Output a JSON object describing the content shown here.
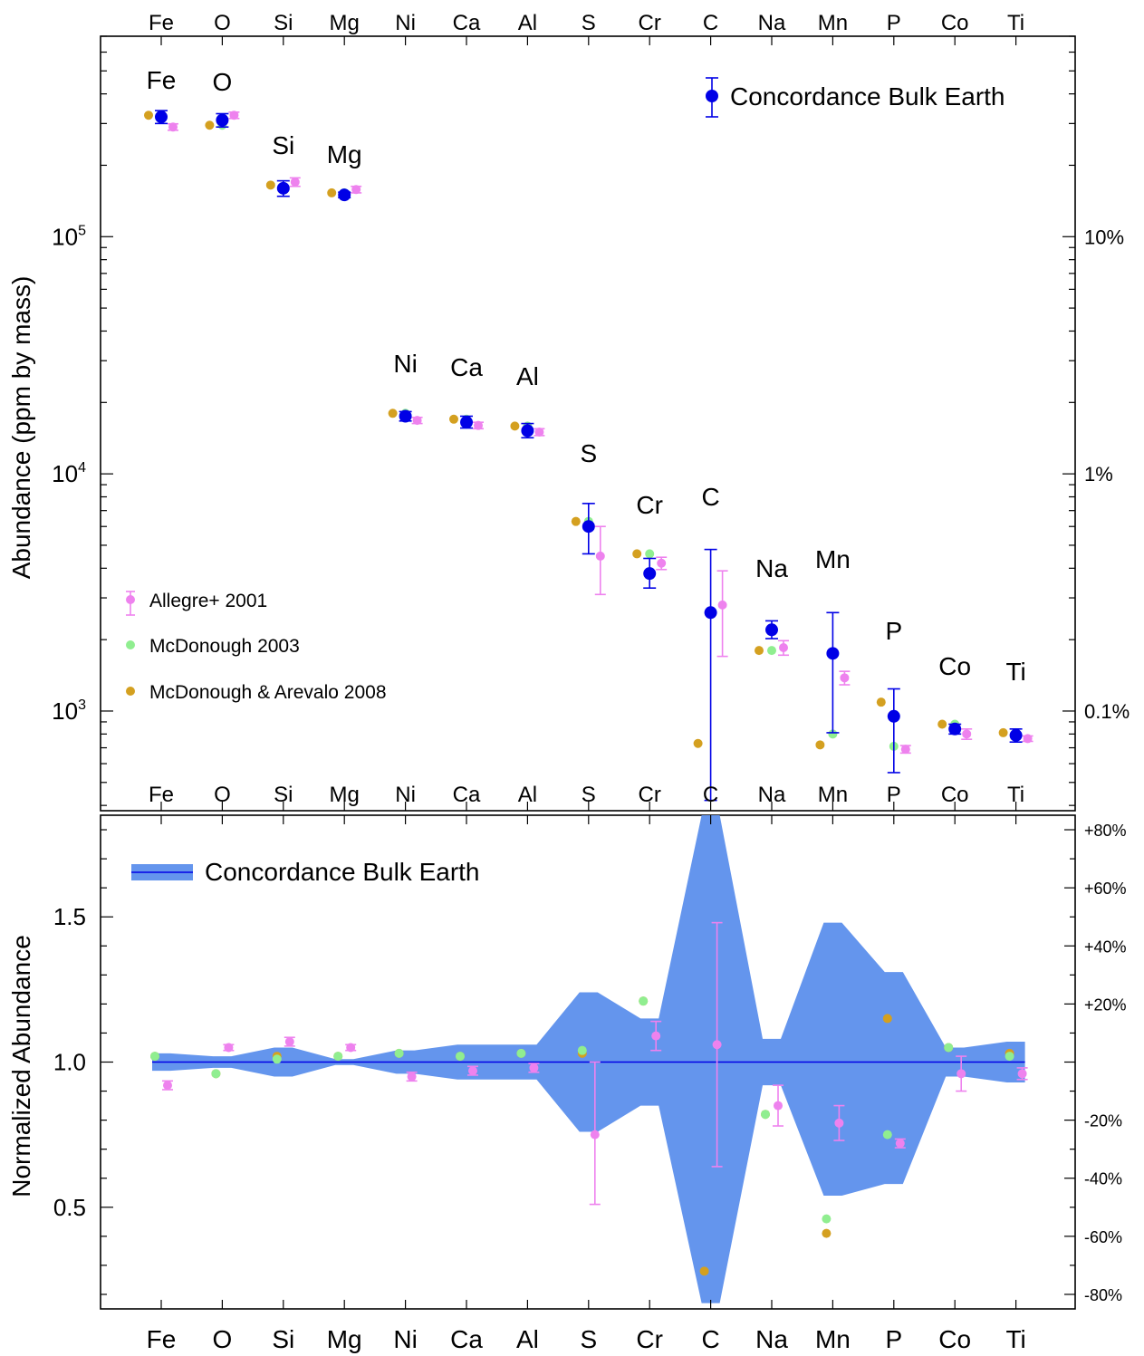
{
  "chart_data": [
    {
      "type": "scatter",
      "panel": "top",
      "ylabel": "Abundance (ppm by mass)",
      "yscale": "log",
      "ylim": [
        380,
        700000
      ],
      "categories": [
        "Fe",
        "O",
        "Si",
        "Mg",
        "Ni",
        "Ca",
        "Al",
        "S",
        "Cr",
        "C",
        "Na",
        "Mn",
        "P",
        "Co",
        "Ti"
      ],
      "y_ticks": [
        {
          "value": 1000,
          "base": "10",
          "exp": "3"
        },
        {
          "value": 10000,
          "base": "10",
          "exp": "4"
        },
        {
          "value": 100000,
          "base": "10",
          "exp": "5"
        }
      ],
      "right_ticks": [
        {
          "value": 1000,
          "label": "0.1%"
        },
        {
          "value": 10000,
          "label": "1%"
        },
        {
          "value": 100000,
          "label": "10%"
        }
      ],
      "series": [
        {
          "name": "Concordance Bulk Earth",
          "color": "#0000e6",
          "marker": "large-dot",
          "values": [
            320000,
            310000,
            160000,
            150000,
            17500,
            16500,
            15200,
            6000,
            3800,
            2600,
            2200,
            1750,
            950,
            840,
            790
          ],
          "err_low": [
            300000,
            290000,
            148000,
            146000,
            16700,
            15600,
            14200,
            4600,
            3300,
            420,
            2020,
            810,
            550,
            800,
            740
          ],
          "err_high": [
            340000,
            330000,
            172000,
            154000,
            18300,
            17500,
            16300,
            7500,
            4400,
            4800,
            2400,
            2600,
            1240,
            880,
            840
          ]
        },
        {
          "name": "Allegre+ 2001",
          "color": "#ee82ee",
          "marker": "dot",
          "values": [
            290000,
            325000,
            170000,
            158000,
            16800,
            16000,
            15000,
            4500,
            4200,
            2800,
            1850,
            1380,
            690,
            800,
            765
          ],
          "err_low": [
            281000,
            315000,
            163000,
            153000,
            16300,
            15500,
            14500,
            3100,
            3950,
            1700,
            1720,
            1290,
            665,
            760,
            745
          ],
          "err_high": [
            299000,
            335000,
            177000,
            163000,
            17300,
            16500,
            15500,
            6000,
            4450,
            3900,
            1980,
            1470,
            715,
            840,
            785
          ]
        },
        {
          "name": "McDonough 2003",
          "color": "#90ee90",
          "marker": "dot",
          "values": [
            320000,
            295000,
            162000,
            153000,
            18000,
            17000,
            15900,
            6300,
            4600,
            null,
            1800,
            800,
            710,
            880,
            810
          ]
        },
        {
          "name": "McDonough & Arevalo 2008",
          "color": "#d4a020",
          "marker": "dot",
          "values": [
            325000,
            295000,
            165000,
            153000,
            18000,
            17000,
            15900,
            6300,
            4600,
            730,
            1800,
            720,
            1090,
            880,
            810
          ]
        }
      ]
    },
    {
      "type": "scatter",
      "panel": "bottom",
      "ylabel": "Normalized Abundance",
      "ylim": [
        0.15,
        1.85
      ],
      "categories": [
        "Fe",
        "O",
        "Si",
        "Mg",
        "Ni",
        "Ca",
        "Al",
        "S",
        "Cr",
        "C",
        "Na",
        "Mn",
        "P",
        "Co",
        "Ti"
      ],
      "y_ticks": [
        {
          "value": 0.5,
          "label": "0.5"
        },
        {
          "value": 1.0,
          "label": "1.0"
        },
        {
          "value": 1.5,
          "label": "1.5"
        }
      ],
      "right_ticks": [
        {
          "value": 1.8,
          "label": "+80%"
        },
        {
          "value": 1.6,
          "label": "+60%"
        },
        {
          "value": 1.4,
          "label": "+40%"
        },
        {
          "value": 1.2,
          "label": "+20%"
        },
        {
          "value": 0.8,
          "label": "-20%"
        },
        {
          "value": 0.6,
          "label": "-40%"
        },
        {
          "value": 0.4,
          "label": "-60%"
        },
        {
          "value": 0.2,
          "label": "-80%"
        }
      ],
      "band": {
        "name": "Concordance Bulk Earth",
        "upper": [
          1.03,
          1.02,
          1.05,
          1.01,
          1.04,
          1.06,
          1.06,
          1.24,
          1.15,
          1.85,
          1.08,
          1.48,
          1.31,
          1.05,
          1.07
        ],
        "lower": [
          0.97,
          0.98,
          0.95,
          0.99,
          0.96,
          0.94,
          0.94,
          0.76,
          0.85,
          0.17,
          0.92,
          0.54,
          0.58,
          0.95,
          0.93
        ]
      },
      "series": [
        {
          "name": "Allegre+ 2001",
          "color": "#ee82ee",
          "values": [
            0.92,
            1.05,
            1.07,
            1.05,
            0.95,
            0.97,
            0.98,
            0.75,
            1.09,
            1.06,
            0.85,
            0.79,
            0.72,
            0.96,
            0.96
          ],
          "err_low": [
            0.905,
            1.04,
            1.055,
            1.04,
            0.935,
            0.955,
            0.965,
            0.51,
            1.04,
            0.64,
            0.78,
            0.73,
            0.705,
            0.9,
            0.94
          ],
          "err_high": [
            0.935,
            1.06,
            1.085,
            1.06,
            0.965,
            0.985,
            0.995,
            1.0,
            1.14,
            1.48,
            0.92,
            0.85,
            0.735,
            1.02,
            0.98
          ]
        },
        {
          "name": "McDonough 2003",
          "color": "#90ee90",
          "values": [
            1.02,
            0.96,
            1.01,
            1.02,
            1.03,
            1.02,
            1.03,
            1.04,
            1.21,
            null,
            0.82,
            0.46,
            0.75,
            1.05,
            1.02
          ]
        },
        {
          "name": "McDonough & Arevalo 2008",
          "color": "#d4a020",
          "values": [
            1.02,
            0.96,
            1.02,
            1.02,
            1.03,
            1.02,
            1.03,
            1.03,
            1.21,
            0.28,
            0.82,
            0.41,
            1.15,
            1.05,
            1.03
          ]
        }
      ]
    }
  ]
}
